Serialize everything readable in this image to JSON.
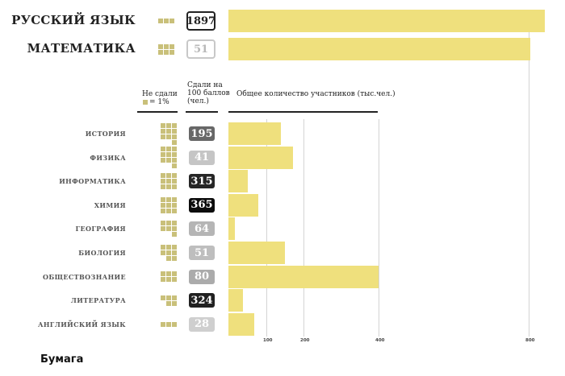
{
  "colors": {
    "bar": "#efe07d",
    "square": "#c9c07a",
    "grid": "#d4d4d4"
  },
  "headers": {
    "failed_line1": "Не сдали",
    "failed_legend": "= 1%",
    "hundred": [
      "Сдали на",
      "100 баллов",
      "(чел.)"
    ],
    "participants": "Общее количество участников (тыс.чел.)"
  },
  "logo": "Бумага",
  "chart_data": {
    "type": "bar",
    "orientation": "horizontal",
    "xlabel": "Общее количество участников (тыс.чел.)",
    "xlim": [
      0,
      850
    ],
    "xticks": [
      100,
      200,
      400,
      800
    ],
    "grid": true,
    "main_subjects": [
      {
        "name": "РУССКИЙ ЯЗЫК",
        "failed_pct": 3,
        "hundred_scores": 1897,
        "participants": 843
      },
      {
        "name": "МАТЕМАТИКА",
        "failed_pct": 6,
        "hundred_scores": 51,
        "participants": 805
      }
    ],
    "subjects": [
      {
        "name": "ИСТОРИЯ",
        "failed_pct": 10,
        "hundred_scores": 195,
        "participants": 139
      },
      {
        "name": "ФИЗИКА",
        "failed_pct": 10,
        "hundred_scores": 41,
        "participants": 171
      },
      {
        "name": "ИНФОРМАТИКА",
        "failed_pct": 9,
        "hundred_scores": 315,
        "participants": 51
      },
      {
        "name": "ХИМИЯ",
        "failed_pct": 9,
        "hundred_scores": 365,
        "participants": 80
      },
      {
        "name": "ГЕОГРАФИЯ",
        "failed_pct": 7,
        "hundred_scores": 64,
        "participants": 18
      },
      {
        "name": "БИОЛОГИЯ",
        "failed_pct": 8,
        "hundred_scores": 51,
        "participants": 150
      },
      {
        "name": "ОБЩЕСТВОЗНАНИЕ",
        "failed_pct": 6,
        "hundred_scores": 80,
        "participants": 400
      },
      {
        "name": "ЛИТЕРАТУРА",
        "failed_pct": 5,
        "hundred_scores": 324,
        "participants": 38
      },
      {
        "name": "АНГЛИЙСКИЙ ЯЗЫК",
        "failed_pct": 3,
        "hundred_scores": 28,
        "participants": 68
      }
    ]
  }
}
